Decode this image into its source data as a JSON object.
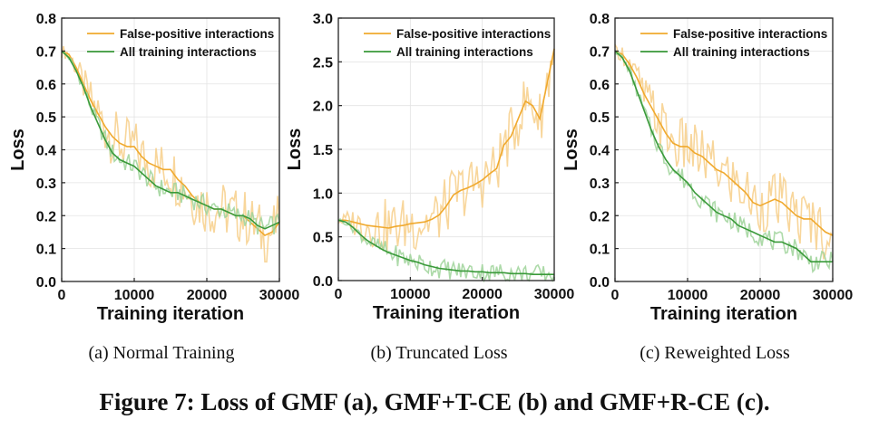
{
  "figure_caption": "Figure 7: Loss of GMF (a), GMF+T-CE (b) and GMF+R-CE (c).",
  "colors": {
    "fp": "#f0a92e",
    "fp_light": "#f7cf8a",
    "all": "#3a9a3a",
    "all_light": "#9fd39a"
  },
  "chart_data": [
    {
      "type": "line",
      "subcaption": "(a)  Normal Training",
      "xlabel": "Training iteration",
      "ylabel": "Loss",
      "xlim": [
        0,
        30000
      ],
      "ylim": [
        0,
        0.8
      ],
      "xticks": [
        0,
        10000,
        20000,
        30000
      ],
      "xtick_labels": [
        "0",
        "10000",
        "20000",
        "30000"
      ],
      "yticks": [
        0,
        0.1,
        0.2,
        0.3,
        0.4,
        0.5,
        0.6,
        0.7,
        0.8
      ],
      "ytick_labels": [
        "0.0",
        "0.1",
        "0.2",
        "0.3",
        "0.4",
        "0.5",
        "0.6",
        "0.7",
        "0.8"
      ],
      "legend_position": "top-right",
      "series": [
        {
          "name": "False-positive interactions",
          "color_key": "fp",
          "x": [
            0,
            1000,
            2000,
            3000,
            4000,
            5000,
            6000,
            7000,
            8000,
            9000,
            10000,
            11000,
            12000,
            13000,
            14000,
            15000,
            16000,
            17000,
            18000,
            19000,
            20000,
            21000,
            22000,
            23000,
            24000,
            25000,
            26000,
            27000,
            28000,
            29000,
            30000
          ],
          "values": [
            0.7,
            0.69,
            0.65,
            0.6,
            0.55,
            0.51,
            0.47,
            0.44,
            0.42,
            0.41,
            0.41,
            0.38,
            0.36,
            0.35,
            0.34,
            0.34,
            0.31,
            0.29,
            0.26,
            0.24,
            0.23,
            0.22,
            0.22,
            0.21,
            0.2,
            0.2,
            0.18,
            0.16,
            0.14,
            0.15,
            0.18
          ]
        },
        {
          "name": "All training interactions",
          "color_key": "all",
          "x": [
            0,
            1000,
            2000,
            3000,
            4000,
            5000,
            6000,
            7000,
            8000,
            9000,
            10000,
            11000,
            12000,
            13000,
            14000,
            15000,
            16000,
            17000,
            18000,
            19000,
            20000,
            21000,
            22000,
            23000,
            24000,
            25000,
            26000,
            27000,
            28000,
            29000,
            30000
          ],
          "values": [
            0.7,
            0.68,
            0.64,
            0.59,
            0.53,
            0.48,
            0.43,
            0.39,
            0.37,
            0.36,
            0.35,
            0.33,
            0.31,
            0.29,
            0.28,
            0.27,
            0.27,
            0.26,
            0.25,
            0.24,
            0.23,
            0.22,
            0.22,
            0.21,
            0.2,
            0.2,
            0.19,
            0.17,
            0.16,
            0.17,
            0.18
          ]
        }
      ]
    },
    {
      "type": "line",
      "subcaption": "(b)  Truncated Loss",
      "xlabel": "Training iteration",
      "ylabel": "Loss",
      "xlim": [
        0,
        30000
      ],
      "ylim": [
        0,
        3.0
      ],
      "xticks": [
        0,
        10000,
        20000,
        30000
      ],
      "xtick_labels": [
        "0",
        "10000",
        "20000",
        "30000"
      ],
      "yticks": [
        0,
        0.5,
        1.0,
        1.5,
        2.0,
        2.5,
        3.0
      ],
      "ytick_labels": [
        "0.0",
        "0.5",
        "1.0",
        "1.5",
        "2.0",
        "2.5",
        "3.0"
      ],
      "legend_position": "top-right",
      "series": [
        {
          "name": "False-positive interactions",
          "color_key": "fp",
          "x": [
            0,
            1000,
            2000,
            3000,
            4000,
            5000,
            6000,
            7000,
            8000,
            9000,
            10000,
            11000,
            12000,
            13000,
            14000,
            15000,
            16000,
            17000,
            18000,
            19000,
            20000,
            21000,
            22000,
            23000,
            24000,
            25000,
            26000,
            27000,
            28000,
            29000,
            30000
          ],
          "values": [
            0.69,
            0.69,
            0.67,
            0.65,
            0.63,
            0.62,
            0.61,
            0.6,
            0.62,
            0.63,
            0.65,
            0.66,
            0.67,
            0.7,
            0.75,
            0.85,
            0.98,
            1.03,
            1.06,
            1.1,
            1.15,
            1.22,
            1.28,
            1.55,
            1.65,
            1.85,
            2.05,
            2.0,
            1.85,
            2.25,
            2.65
          ]
        },
        {
          "name": "All training interactions",
          "color_key": "all",
          "x": [
            0,
            1000,
            2000,
            3000,
            4000,
            5000,
            6000,
            7000,
            8000,
            9000,
            10000,
            11000,
            12000,
            13000,
            14000,
            15000,
            16000,
            17000,
            18000,
            19000,
            20000,
            21000,
            22000,
            23000,
            24000,
            25000,
            26000,
            27000,
            28000,
            29000,
            30000
          ],
          "values": [
            0.69,
            0.67,
            0.61,
            0.53,
            0.46,
            0.41,
            0.36,
            0.32,
            0.29,
            0.26,
            0.23,
            0.21,
            0.18,
            0.16,
            0.14,
            0.13,
            0.12,
            0.11,
            0.11,
            0.1,
            0.1,
            0.09,
            0.09,
            0.09,
            0.08,
            0.08,
            0.08,
            0.07,
            0.07,
            0.07,
            0.07
          ]
        }
      ]
    },
    {
      "type": "line",
      "subcaption": "(c)  Reweighted Loss",
      "xlabel": "Training iteration",
      "ylabel": "Loss",
      "xlim": [
        0,
        30000
      ],
      "ylim": [
        0,
        0.8
      ],
      "xticks": [
        0,
        10000,
        20000,
        30000
      ],
      "xtick_labels": [
        "0",
        "10000",
        "20000",
        "30000"
      ],
      "yticks": [
        0,
        0.1,
        0.2,
        0.3,
        0.4,
        0.5,
        0.6,
        0.7,
        0.8
      ],
      "ytick_labels": [
        "0.0",
        "0.1",
        "0.2",
        "0.3",
        "0.4",
        "0.5",
        "0.6",
        "0.7",
        "0.8"
      ],
      "legend_position": "top-right",
      "series": [
        {
          "name": "False-positive interactions",
          "color_key": "fp",
          "x": [
            0,
            1000,
            2000,
            3000,
            4000,
            5000,
            6000,
            7000,
            8000,
            9000,
            10000,
            11000,
            12000,
            13000,
            14000,
            15000,
            16000,
            17000,
            18000,
            19000,
            20000,
            21000,
            22000,
            23000,
            24000,
            25000,
            26000,
            27000,
            28000,
            29000,
            30000
          ],
          "values": [
            0.7,
            0.69,
            0.66,
            0.62,
            0.57,
            0.53,
            0.49,
            0.45,
            0.42,
            0.41,
            0.41,
            0.39,
            0.38,
            0.36,
            0.34,
            0.33,
            0.31,
            0.29,
            0.27,
            0.24,
            0.23,
            0.24,
            0.25,
            0.24,
            0.22,
            0.2,
            0.19,
            0.19,
            0.17,
            0.15,
            0.14
          ]
        },
        {
          "name": "All training interactions",
          "color_key": "all",
          "x": [
            0,
            1000,
            2000,
            3000,
            4000,
            5000,
            6000,
            7000,
            8000,
            9000,
            10000,
            11000,
            12000,
            13000,
            14000,
            15000,
            16000,
            17000,
            18000,
            19000,
            20000,
            21000,
            22000,
            23000,
            24000,
            25000,
            26000,
            27000,
            28000,
            29000,
            30000
          ],
          "values": [
            0.7,
            0.68,
            0.64,
            0.58,
            0.52,
            0.46,
            0.41,
            0.37,
            0.34,
            0.32,
            0.3,
            0.27,
            0.25,
            0.23,
            0.21,
            0.2,
            0.19,
            0.17,
            0.16,
            0.15,
            0.14,
            0.13,
            0.12,
            0.12,
            0.11,
            0.1,
            0.08,
            0.06,
            0.06,
            0.06,
            0.06
          ]
        }
      ]
    }
  ]
}
